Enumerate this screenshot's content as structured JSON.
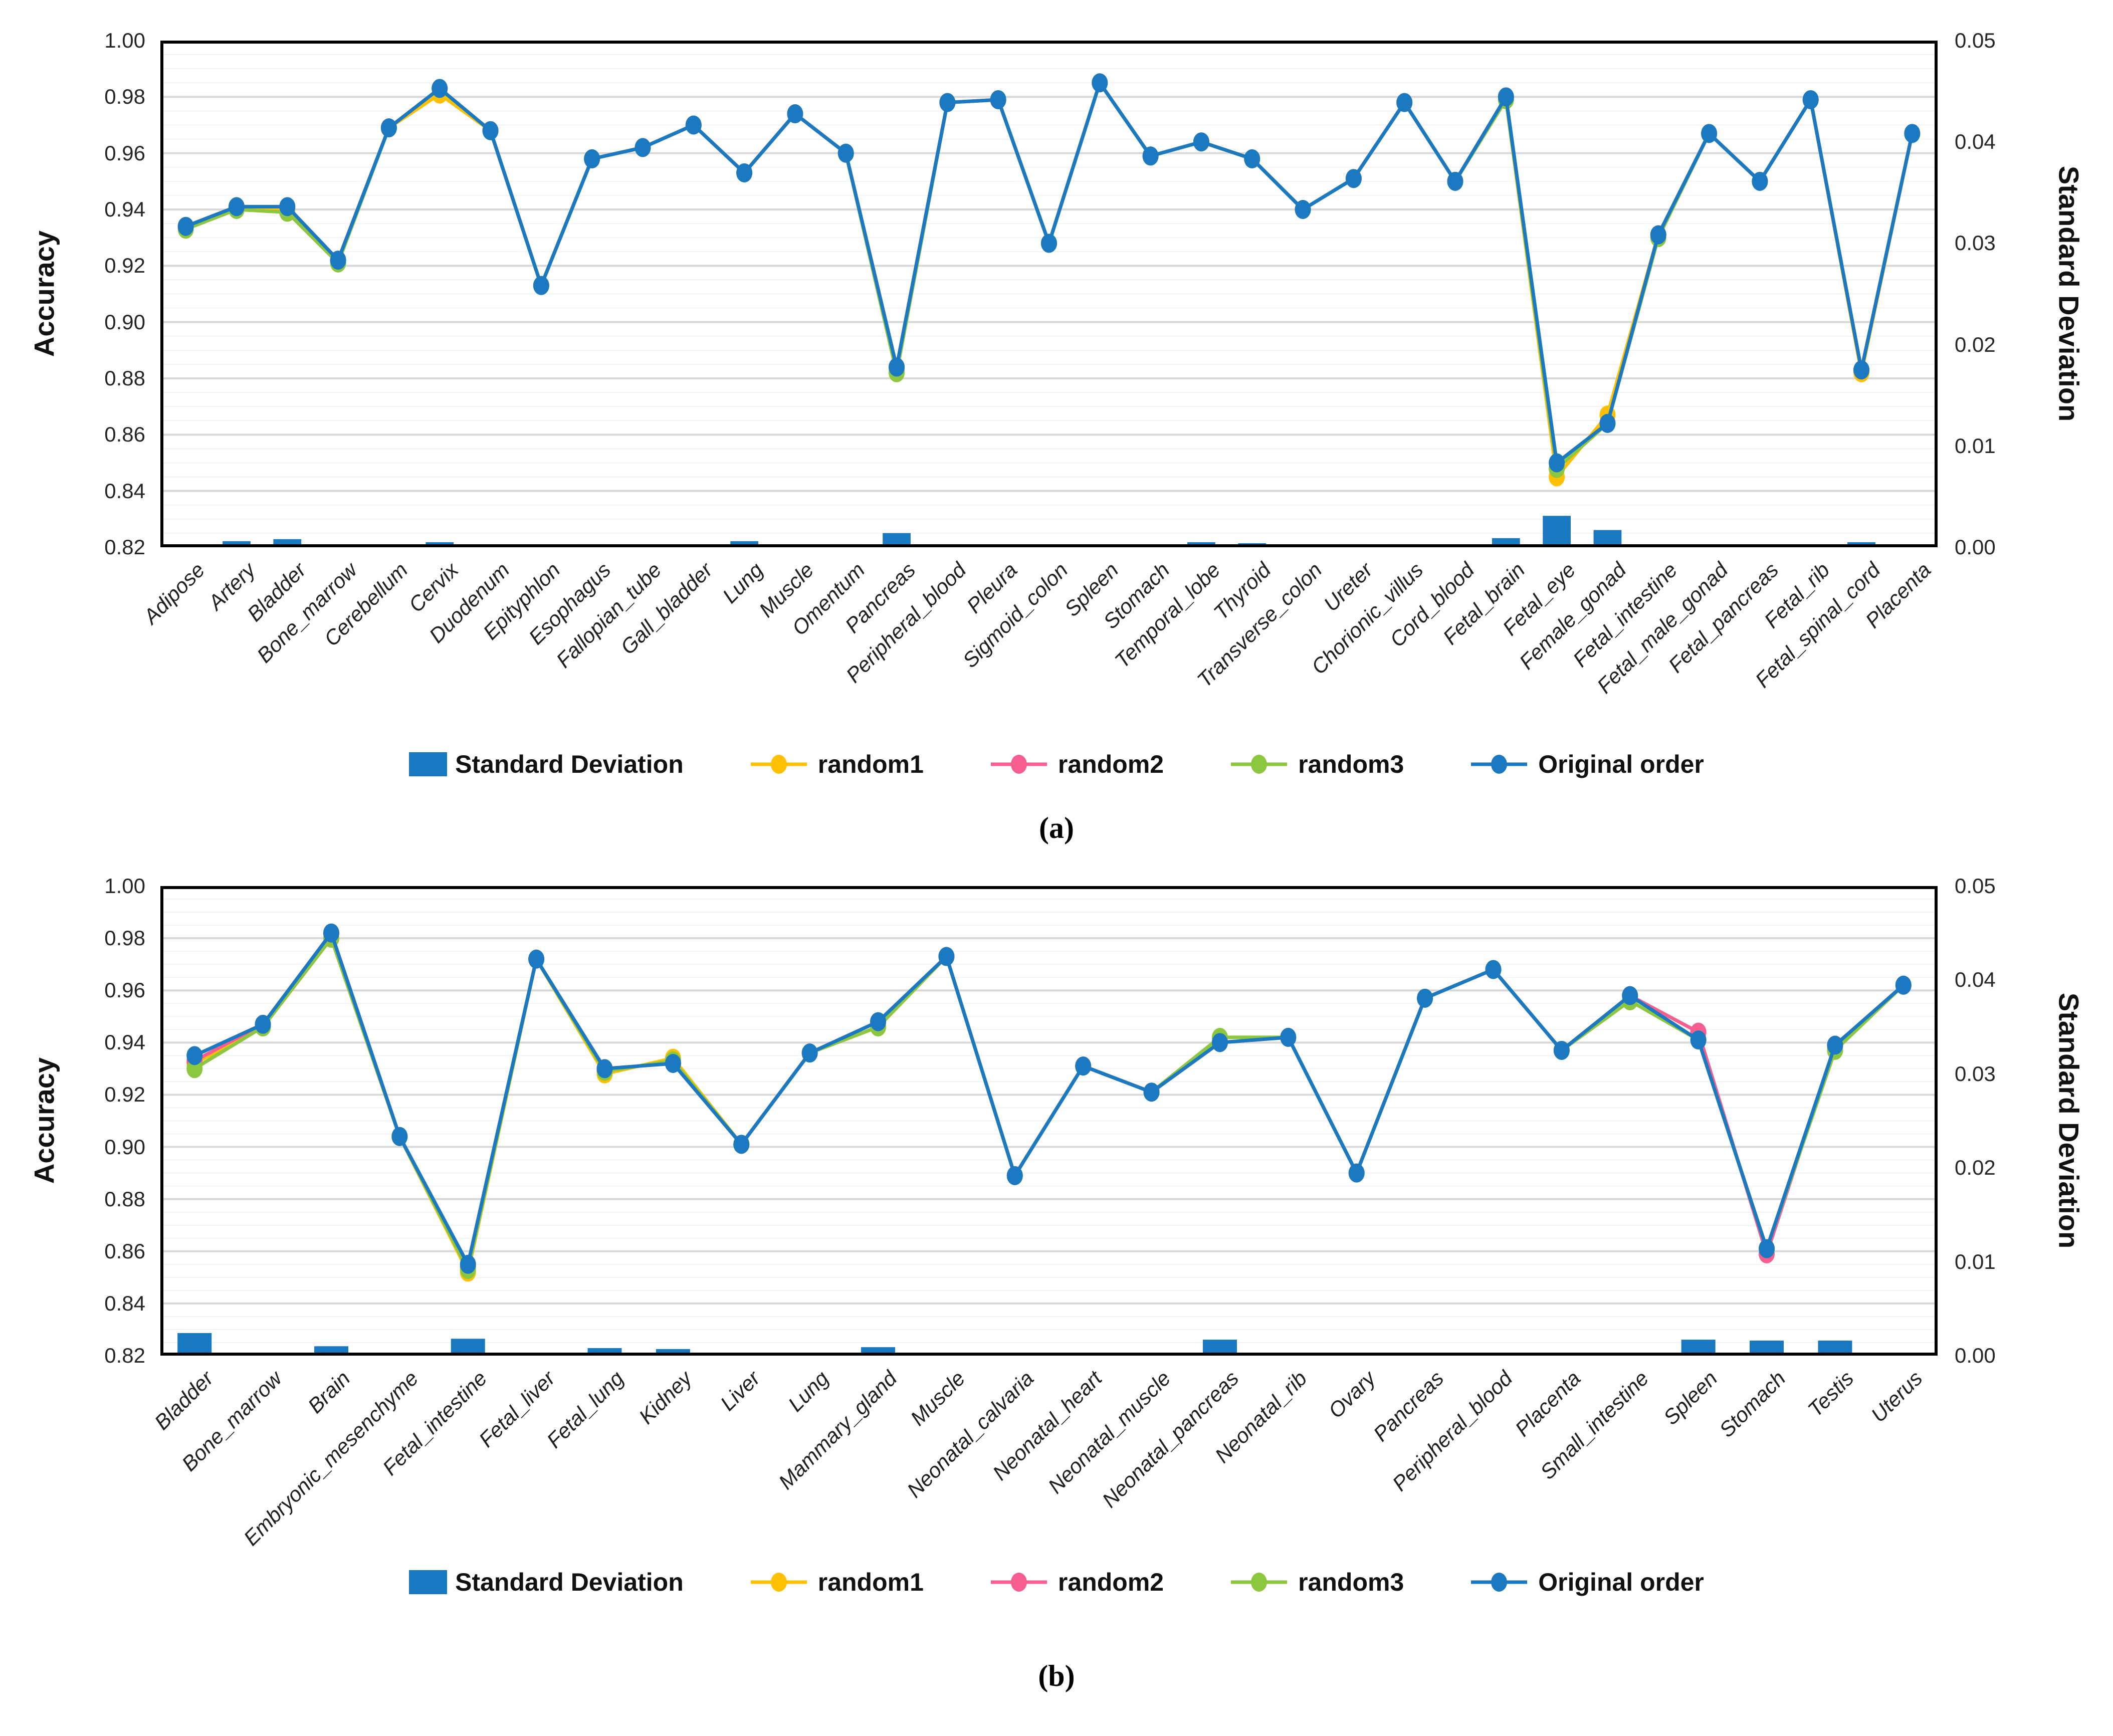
{
  "colors": {
    "bar_blue": "#1878c0",
    "random1": "#ffc000",
    "random2": "#f85d90",
    "random3": "#8dc63f",
    "original": "#1b79c1",
    "grid_minor": "#f2f2f2",
    "grid_major": "#d8d8d8",
    "frame": "#000000"
  },
  "legend": {
    "sd": "Standard Deviation",
    "r1": "random1",
    "r2": "random2",
    "r3": "random3",
    "orig": "Original order"
  },
  "captions": {
    "a": "(a)",
    "b": "(b)"
  },
  "axes": {
    "left_title": "Accuracy",
    "right_title": "Standard Deviation",
    "left_ticks": [
      "1.00",
      "0.98",
      "0.96",
      "0.94",
      "0.92",
      "0.90",
      "0.88",
      "0.86",
      "0.84",
      "0.82"
    ],
    "right_ticks": [
      "0.05",
      "0.04",
      "0.03",
      "0.02",
      "0.01",
      "0.00"
    ]
  },
  "chart_data": [
    {
      "type": "line",
      "panel": "a",
      "ylabel": "Accuracy",
      "ylabel_right": "Standard Deviation",
      "ylim": [
        0.82,
        1.0
      ],
      "ylim_right": [
        0,
        0.05
      ],
      "grid": "on",
      "legend_position": "bottom",
      "categories": [
        "Adipose",
        "Artery",
        "Bladder",
        "Bone_marrow",
        "Cerebellum",
        "Cervix",
        "Duodenum",
        "Epityphlon",
        "Esophagus",
        "Fallopian_tube",
        "Gall_bladder",
        "Lung",
        "Muscle",
        "Omentum",
        "Pancreas",
        "Peripheral_blood",
        "Pleura",
        "Sigmoid_colon",
        "Spleen",
        "Stomach",
        "Temporal_lobe",
        "Thyroid",
        "Transverse_colon",
        "Ureter",
        "Chorionic_villus",
        "Cord_blood",
        "Fetal_brain",
        "Fetal_eye",
        "Female_gonad",
        "Fetal_intestine",
        "Fetal_male_gonad",
        "Fetal_pancreas",
        "Fetal_rib",
        "Fetal_spinal_cord",
        "Placenta"
      ],
      "series": [
        {
          "name": "random1",
          "color_key": "random1",
          "values": [
            0.934,
            0.941,
            0.94,
            0.922,
            0.969,
            0.981,
            0.968,
            0.913,
            0.958,
            0.962,
            0.97,
            0.953,
            0.974,
            0.96,
            0.883,
            0.978,
            0.979,
            0.928,
            0.985,
            0.959,
            0.964,
            0.958,
            0.94,
            0.951,
            0.978,
            0.95,
            0.979,
            0.845,
            0.867,
            0.931,
            0.967,
            0.95,
            0.979,
            0.882,
            0.967
          ]
        },
        {
          "name": "random2",
          "color_key": "random2",
          "values": [
            0.934,
            0.941,
            0.941,
            0.922,
            0.969,
            0.983,
            0.968,
            0.913,
            0.958,
            0.962,
            0.97,
            0.953,
            0.974,
            0.96,
            0.884,
            0.978,
            0.979,
            0.928,
            0.985,
            0.959,
            0.964,
            0.958,
            0.94,
            0.951,
            0.978,
            0.95,
            0.98,
            0.848,
            0.864,
            0.931,
            0.967,
            0.95,
            0.979,
            0.883,
            0.967
          ]
        },
        {
          "name": "random3",
          "color_key": "random3",
          "values": [
            0.933,
            0.94,
            0.939,
            0.921,
            0.969,
            0.983,
            0.968,
            0.913,
            0.958,
            0.962,
            0.97,
            0.953,
            0.974,
            0.96,
            0.882,
            0.978,
            0.979,
            0.928,
            0.985,
            0.959,
            0.964,
            0.958,
            0.94,
            0.951,
            0.978,
            0.95,
            0.979,
            0.848,
            0.864,
            0.93,
            0.967,
            0.95,
            0.979,
            0.883,
            0.967
          ]
        },
        {
          "name": "Original order",
          "color_key": "original",
          "values": [
            0.934,
            0.941,
            0.941,
            0.922,
            0.969,
            0.983,
            0.968,
            0.913,
            0.958,
            0.962,
            0.97,
            0.953,
            0.974,
            0.96,
            0.884,
            0.978,
            0.979,
            0.928,
            0.985,
            0.959,
            0.964,
            0.958,
            0.94,
            0.951,
            0.978,
            0.95,
            0.98,
            0.85,
            0.864,
            0.931,
            0.967,
            0.95,
            0.979,
            0.883,
            0.967
          ]
        }
      ],
      "bars": {
        "name": "Standard Deviation",
        "axis": "right",
        "color_key": "bar_blue",
        "values": [
          0,
          0.0006,
          0.0008,
          0,
          0,
          0.0005,
          0,
          0,
          0.0003,
          0,
          0,
          0.0006,
          0,
          0.0003,
          0.0014,
          0.0003,
          0,
          0,
          0,
          0,
          0.0005,
          0.0004,
          0,
          0.0003,
          0.0003,
          0,
          0.0009,
          0.0031,
          0.0017,
          0,
          0,
          0,
          0,
          0.0005,
          0
        ]
      }
    },
    {
      "type": "line",
      "panel": "b",
      "ylabel": "Accuracy",
      "ylabel_right": "Standard Deviation",
      "ylim": [
        0.82,
        1.0
      ],
      "ylim_right": [
        0,
        0.05
      ],
      "grid": "on",
      "legend_position": "bottom",
      "categories": [
        "Bladder",
        "Bone_marrow",
        "Brain",
        "Embryonic_mesenchyme",
        "Fetal_intestine",
        "Fetal_liver",
        "Fetal_lung",
        "Kidney",
        "Liver",
        "Lung",
        "Mammary_gland",
        "Muscle",
        "Neonatal_calvaria",
        "Neonatal_heart",
        "Neonatal_muscle",
        "Neonatal_pancreas",
        "Neonatal_rib",
        "Ovary",
        "Pancreas",
        "Peripheral_blood",
        "Placenta",
        "Small_intestine",
        "Spleen",
        "Stomach",
        "Testis",
        "Uterus"
      ],
      "series": [
        {
          "name": "random1",
          "color_key": "random1",
          "values": [
            0.932,
            0.946,
            0.98,
            0.904,
            0.852,
            0.972,
            0.928,
            0.934,
            0.901,
            0.936,
            0.946,
            0.973,
            0.889,
            0.931,
            0.921,
            0.94,
            0.942,
            0.89,
            0.957,
            0.968,
            0.937,
            0.958,
            0.941,
            0.861,
            0.938,
            0.962
          ]
        },
        {
          "name": "random2",
          "color_key": "random2",
          "values": [
            0.933,
            0.947,
            0.982,
            0.904,
            0.854,
            0.972,
            0.93,
            0.932,
            0.901,
            0.936,
            0.948,
            0.973,
            0.889,
            0.931,
            0.921,
            0.94,
            0.942,
            0.89,
            0.957,
            0.968,
            0.937,
            0.958,
            0.944,
            0.859,
            0.939,
            0.962
          ]
        },
        {
          "name": "random3",
          "color_key": "random3",
          "values": [
            0.93,
            0.946,
            0.98,
            0.904,
            0.853,
            0.972,
            0.929,
            0.933,
            0.901,
            0.936,
            0.946,
            0.973,
            0.889,
            0.931,
            0.921,
            0.942,
            0.942,
            0.89,
            0.957,
            0.968,
            0.937,
            0.956,
            0.941,
            0.861,
            0.937,
            0.962
          ]
        },
        {
          "name": "Original order",
          "color_key": "original",
          "values": [
            0.935,
            0.947,
            0.982,
            0.904,
            0.855,
            0.972,
            0.93,
            0.932,
            0.901,
            0.936,
            0.948,
            0.973,
            0.889,
            0.931,
            0.921,
            0.94,
            0.942,
            0.89,
            0.957,
            0.968,
            0.937,
            0.958,
            0.941,
            0.861,
            0.939,
            0.962
          ]
        }
      ],
      "bars": {
        "name": "Standard Deviation",
        "axis": "right",
        "color_key": "bar_blue",
        "values": [
          0.0024,
          0.0003,
          0.001,
          0,
          0.0018,
          0,
          0.0008,
          0.0007,
          0,
          0,
          0.0009,
          0,
          0,
          0,
          0,
          0.0017,
          0,
          0,
          0,
          0,
          0,
          0,
          0.0017,
          0.0016,
          0.0016,
          0
        ]
      }
    }
  ]
}
